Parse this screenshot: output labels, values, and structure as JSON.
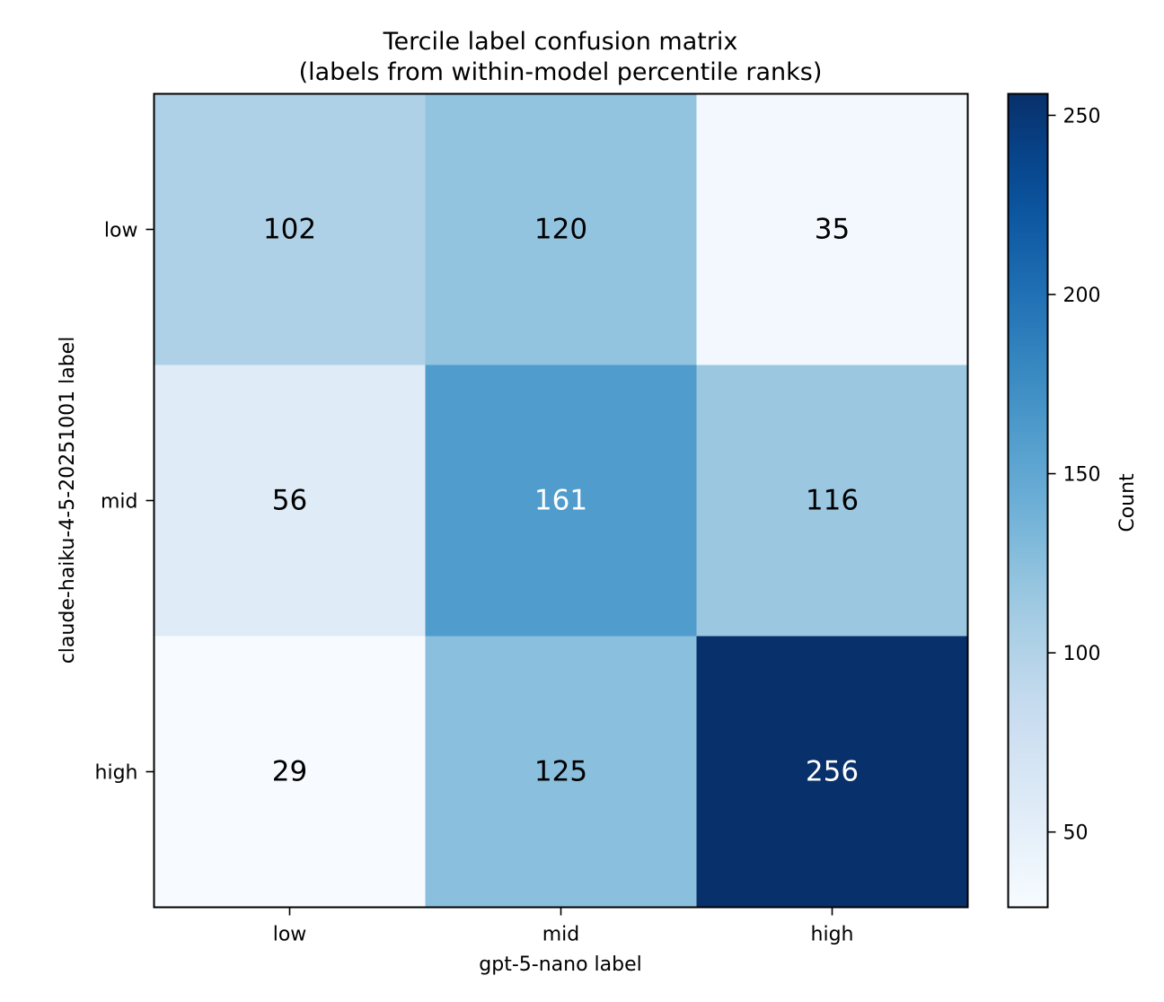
{
  "chart_data": {
    "type": "heatmap",
    "title": "Tercile label confusion matrix",
    "subtitle": "(labels from within-model percentile ranks)",
    "xlabel": "gpt-5-nano label",
    "ylabel": "claude-haiku-4-5-20251001 label",
    "x_categories": [
      "low",
      "mid",
      "high"
    ],
    "y_categories": [
      "low",
      "mid",
      "high"
    ],
    "values": [
      [
        102,
        120,
        35
      ],
      [
        56,
        161,
        116
      ],
      [
        29,
        125,
        256
      ]
    ],
    "colorbar": {
      "label": "Count",
      "min": 29,
      "max": 256,
      "ticks": [
        50,
        100,
        150,
        200,
        250
      ],
      "colormap": "Blues"
    },
    "grid": false
  }
}
